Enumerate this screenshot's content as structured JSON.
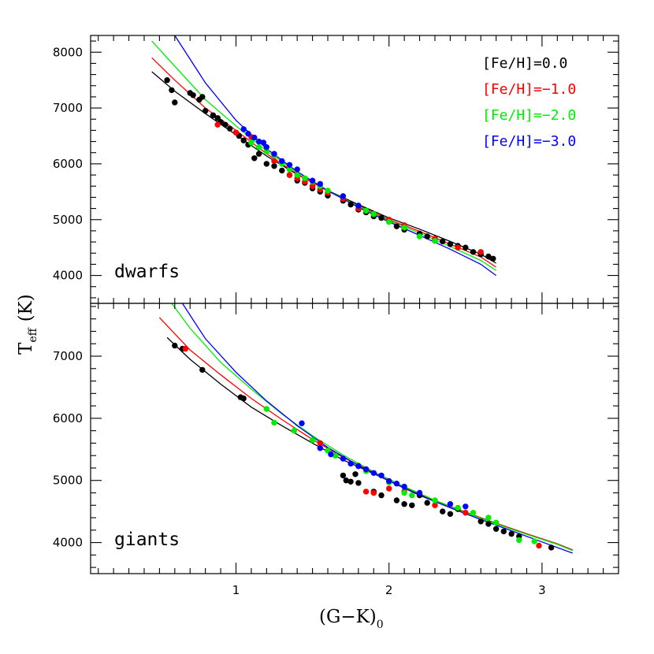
{
  "colors": {
    "feh_0": "#000000",
    "feh_m1": "#ff0000",
    "feh_m2": "#00ee00",
    "feh_m3": "#0000ff"
  },
  "axes": {
    "xlabel_main": "(G−K)",
    "xlabel_sub": "0",
    "ylabel_main": "T",
    "ylabel_sub": "eff",
    "ylabel_unit": "(K)"
  },
  "chart_data": [
    {
      "type": "scatter",
      "panel": "dwarfs",
      "label": "dwarfs",
      "xlim": [
        0.05,
        3.5
      ],
      "ylim": [
        3500,
        8300
      ],
      "xticks": [
        1,
        2,
        3
      ],
      "yticks": [
        4000,
        5000,
        6000,
        7000,
        8000
      ],
      "ytick_labels": [
        "4000",
        "5000",
        "6000",
        "7000",
        "8000"
      ],
      "legend": {
        "placement": "top-right",
        "entries": [
          "[Fe/H]=0.0",
          "[Fe/H]=−1.0",
          "[Fe/H]=−2.0",
          "[Fe/H]=−3.0"
        ]
      },
      "curves": [
        {
          "name": "[Fe/H]=0.0",
          "color": "#000000",
          "x": [
            0.45,
            0.6,
            0.8,
            1.0,
            1.2,
            1.4,
            1.6,
            1.8,
            2.0,
            2.2,
            2.4,
            2.6,
            2.7
          ],
          "y": [
            7650,
            7300,
            6900,
            6520,
            6140,
            5810,
            5520,
            5270,
            5030,
            4830,
            4610,
            4380,
            4220
          ]
        },
        {
          "name": "[Fe/H]=−1.0",
          "color": "#ff0000",
          "x": [
            0.45,
            0.6,
            0.8,
            1.0,
            1.2,
            1.4,
            1.6,
            1.8,
            2.0,
            2.2,
            2.4,
            2.6,
            2.7
          ],
          "y": [
            7900,
            7500,
            7000,
            6600,
            6180,
            5820,
            5510,
            5250,
            5000,
            4790,
            4560,
            4330,
            4150
          ]
        },
        {
          "name": "[Fe/H]=−2.0",
          "color": "#00ee00",
          "x": [
            0.45,
            0.6,
            0.8,
            1.0,
            1.2,
            1.4,
            1.6,
            1.8,
            2.0,
            2.2,
            2.4,
            2.6,
            2.7
          ],
          "y": [
            8200,
            7750,
            7150,
            6680,
            6230,
            5850,
            5520,
            5240,
            4980,
            4760,
            4520,
            4270,
            4090
          ]
        },
        {
          "name": "[Fe/H]=−3.0",
          "color": "#0000ff",
          "x": [
            0.6,
            0.8,
            1.0,
            1.2,
            1.4,
            1.6,
            1.8,
            2.0,
            2.2,
            2.4,
            2.6,
            2.7
          ],
          "y": [
            8300,
            7450,
            6780,
            6270,
            5860,
            5520,
            5220,
            4960,
            4720,
            4470,
            4200,
            4000
          ]
        }
      ],
      "series": [
        {
          "name": "[Fe/H]=0.0",
          "color": "#000000",
          "points": [
            [
              0.55,
              7500
            ],
            [
              0.58,
              7320
            ],
            [
              0.6,
              7100
            ],
            [
              0.7,
              7270
            ],
            [
              0.72,
              7230
            ],
            [
              0.76,
              7150
            ],
            [
              0.78,
              7200
            ],
            [
              0.8,
              6950
            ],
            [
              0.85,
              6870
            ],
            [
              0.88,
              6820
            ],
            [
              0.9,
              6750
            ],
            [
              0.93,
              6700
            ],
            [
              0.96,
              6630
            ],
            [
              1.0,
              6560
            ],
            [
              1.02,
              6500
            ],
            [
              1.05,
              6420
            ],
            [
              1.08,
              6340
            ],
            [
              1.12,
              6100
            ],
            [
              1.15,
              6180
            ],
            [
              1.2,
              6000
            ],
            [
              1.25,
              5960
            ],
            [
              1.3,
              5880
            ],
            [
              1.35,
              5800
            ],
            [
              1.4,
              5700
            ],
            [
              1.45,
              5660
            ],
            [
              1.5,
              5560
            ],
            [
              1.55,
              5500
            ],
            [
              1.6,
              5430
            ],
            [
              1.7,
              5340
            ],
            [
              1.75,
              5270
            ],
            [
              1.8,
              5180
            ],
            [
              1.85,
              5130
            ],
            [
              1.9,
              5060
            ],
            [
              1.95,
              5030
            ],
            [
              2.0,
              4970
            ],
            [
              2.05,
              4880
            ],
            [
              2.1,
              4820
            ],
            [
              2.2,
              4750
            ],
            [
              2.25,
              4700
            ],
            [
              2.3,
              4640
            ],
            [
              2.35,
              4610
            ],
            [
              2.4,
              4560
            ],
            [
              2.45,
              4530
            ],
            [
              2.5,
              4500
            ],
            [
              2.55,
              4420
            ],
            [
              2.6,
              4380
            ],
            [
              2.65,
              4340
            ],
            [
              2.68,
              4300
            ]
          ]
        },
        {
          "name": "[Fe/H]=−1.0",
          "color": "#ff0000",
          "points": [
            [
              0.88,
              6700
            ],
            [
              1.0,
              6560
            ],
            [
              1.1,
              6480
            ],
            [
              1.25,
              6050
            ],
            [
              1.35,
              5800
            ],
            [
              1.4,
              5740
            ],
            [
              1.45,
              5680
            ],
            [
              1.5,
              5600
            ],
            [
              1.55,
              5540
            ],
            [
              1.6,
              5480
            ],
            [
              1.7,
              5370
            ],
            [
              1.8,
              5200
            ],
            [
              1.9,
              5100
            ],
            [
              2.0,
              5000
            ],
            [
              2.1,
              4900
            ],
            [
              2.3,
              4660
            ],
            [
              2.45,
              4500
            ],
            [
              2.6,
              4420
            ]
          ]
        },
        {
          "name": "[Fe/H]=−2.0",
          "color": "#00ee00",
          "points": [
            [
              1.1,
              6380
            ],
            [
              1.15,
              6300
            ],
            [
              1.2,
              6220
            ],
            [
              1.25,
              6150
            ],
            [
              1.3,
              6000
            ],
            [
              1.35,
              5900
            ],
            [
              1.4,
              5800
            ],
            [
              1.45,
              5740
            ],
            [
              1.5,
              5680
            ],
            [
              1.55,
              5600
            ],
            [
              1.6,
              5520
            ],
            [
              1.7,
              5420
            ],
            [
              1.8,
              5250
            ],
            [
              1.85,
              5160
            ],
            [
              1.9,
              5100
            ],
            [
              2.0,
              4960
            ],
            [
              2.1,
              4860
            ],
            [
              2.2,
              4700
            ],
            [
              2.3,
              4620
            ]
          ]
        },
        {
          "name": "[Fe/H]=−3.0",
          "color": "#0000ff",
          "points": [
            [
              1.05,
              6620
            ],
            [
              1.08,
              6540
            ],
            [
              1.12,
              6470
            ],
            [
              1.15,
              6400
            ],
            [
              1.18,
              6380
            ],
            [
              1.2,
              6300
            ],
            [
              1.25,
              6180
            ],
            [
              1.3,
              6050
            ],
            [
              1.35,
              5980
            ],
            [
              1.4,
              5900
            ],
            [
              1.5,
              5700
            ],
            [
              1.55,
              5640
            ],
            [
              1.7,
              5420
            ],
            [
              1.8,
              5250
            ]
          ]
        }
      ]
    },
    {
      "type": "scatter",
      "panel": "giants",
      "label": "giants",
      "xlim": [
        0.05,
        3.5
      ],
      "ylim": [
        3500,
        7850
      ],
      "xticks": [
        1,
        2,
        3
      ],
      "xtick_labels": [
        "1",
        "2",
        "3"
      ],
      "yticks": [
        4000,
        5000,
        6000,
        7000
      ],
      "ytick_labels": [
        "4000",
        "5000",
        "6000",
        "7000"
      ],
      "curves": [
        {
          "name": "[Fe/H]=0.0",
          "color": "#000000",
          "x": [
            0.55,
            0.7,
            0.9,
            1.1,
            1.3,
            1.5,
            1.7,
            1.9,
            2.1,
            2.3,
            2.5,
            2.7,
            2.9,
            3.1,
            3.2
          ],
          "y": [
            7300,
            6950,
            6550,
            6180,
            5880,
            5600,
            5330,
            5110,
            4880,
            4670,
            4480,
            4310,
            4140,
            3980,
            3880
          ]
        },
        {
          "name": "[Fe/H]=−1.0",
          "color": "#ff0000",
          "x": [
            0.5,
            0.7,
            0.9,
            1.1,
            1.3,
            1.5,
            1.7,
            1.9,
            2.1,
            2.3,
            2.5,
            2.7,
            2.9,
            3.1,
            3.2
          ],
          "y": [
            7620,
            7100,
            6700,
            6320,
            5980,
            5660,
            5370,
            5130,
            4900,
            4680,
            4490,
            4310,
            4140,
            3980,
            3880
          ]
        },
        {
          "name": "[Fe/H]=−2.0",
          "color": "#00ee00",
          "x": [
            0.58,
            0.7,
            0.9,
            1.1,
            1.3,
            1.5,
            1.7,
            1.9,
            2.1,
            2.3,
            2.5,
            2.7,
            2.9,
            3.1,
            3.2
          ],
          "y": [
            7850,
            7450,
            6900,
            6470,
            6070,
            5720,
            5410,
            5140,
            4900,
            4680,
            4480,
            4300,
            4130,
            3970,
            3870
          ]
        },
        {
          "name": "[Fe/H]=−3.0",
          "color": "#0000ff",
          "x": [
            0.65,
            0.8,
            1.0,
            1.2,
            1.4,
            1.6,
            1.8,
            2.0,
            2.2,
            2.4,
            2.6,
            2.8,
            3.0,
            3.2
          ],
          "y": [
            7850,
            7280,
            6740,
            6280,
            5880,
            5530,
            5240,
            4990,
            4760,
            4560,
            4370,
            4190,
            4010,
            3830
          ]
        }
      ],
      "series": [
        {
          "name": "[Fe/H]=0.0",
          "color": "#000000",
          "points": [
            [
              0.6,
              7170
            ],
            [
              0.65,
              7120
            ],
            [
              0.78,
              6780
            ],
            [
              1.03,
              6340
            ],
            [
              1.05,
              6320
            ],
            [
              1.7,
              5080
            ],
            [
              1.72,
              5000
            ],
            [
              1.75,
              4980
            ],
            [
              1.78,
              5100
            ],
            [
              1.8,
              4960
            ],
            [
              1.9,
              4820
            ],
            [
              1.95,
              4760
            ],
            [
              2.05,
              4680
            ],
            [
              2.1,
              4620
            ],
            [
              2.15,
              4600
            ],
            [
              2.2,
              4760
            ],
            [
              2.25,
              4640
            ],
            [
              2.35,
              4500
            ],
            [
              2.4,
              4460
            ],
            [
              2.45,
              4540
            ],
            [
              2.6,
              4340
            ],
            [
              2.65,
              4300
            ],
            [
              2.7,
              4220
            ],
            [
              2.75,
              4180
            ],
            [
              2.8,
              4140
            ],
            [
              2.85,
              4100
            ],
            [
              3.06,
              3920
            ]
          ]
        },
        {
          "name": "[Fe/H]=−1.0",
          "color": "#ff0000",
          "points": [
            [
              0.67,
              7120
            ],
            [
              1.55,
              5600
            ],
            [
              1.85,
              4820
            ],
            [
              1.9,
              4800
            ],
            [
              2.0,
              4870
            ],
            [
              2.1,
              4820
            ],
            [
              2.3,
              4600
            ],
            [
              2.5,
              4480
            ],
            [
              2.98,
              3950
            ]
          ]
        },
        {
          "name": "[Fe/H]=−2.0",
          "color": "#00ee00",
          "points": [
            [
              1.2,
              6150
            ],
            [
              1.25,
              5930
            ],
            [
              1.38,
              5800
            ],
            [
              1.5,
              5650
            ],
            [
              1.6,
              5480
            ],
            [
              1.65,
              5400
            ],
            [
              1.8,
              5240
            ],
            [
              1.85,
              5150
            ],
            [
              2.0,
              4970
            ],
            [
              2.1,
              4800
            ],
            [
              2.15,
              4760
            ],
            [
              2.3,
              4680
            ],
            [
              2.45,
              4560
            ],
            [
              2.55,
              4480
            ],
            [
              2.65,
              4400
            ],
            [
              2.7,
              4320
            ],
            [
              2.85,
              4040
            ],
            [
              2.95,
              4020
            ]
          ]
        },
        {
          "name": "[Fe/H]=−3.0",
          "color": "#0000ff",
          "points": [
            [
              1.43,
              5920
            ],
            [
              1.55,
              5520
            ],
            [
              1.62,
              5420
            ],
            [
              1.7,
              5350
            ],
            [
              1.75,
              5270
            ],
            [
              1.8,
              5230
            ],
            [
              1.85,
              5180
            ],
            [
              1.9,
              5120
            ],
            [
              1.95,
              5080
            ],
            [
              2.0,
              4990
            ],
            [
              2.05,
              4950
            ],
            [
              2.1,
              4900
            ],
            [
              2.2,
              4800
            ],
            [
              2.4,
              4620
            ],
            [
              2.5,
              4580
            ]
          ]
        }
      ]
    }
  ]
}
